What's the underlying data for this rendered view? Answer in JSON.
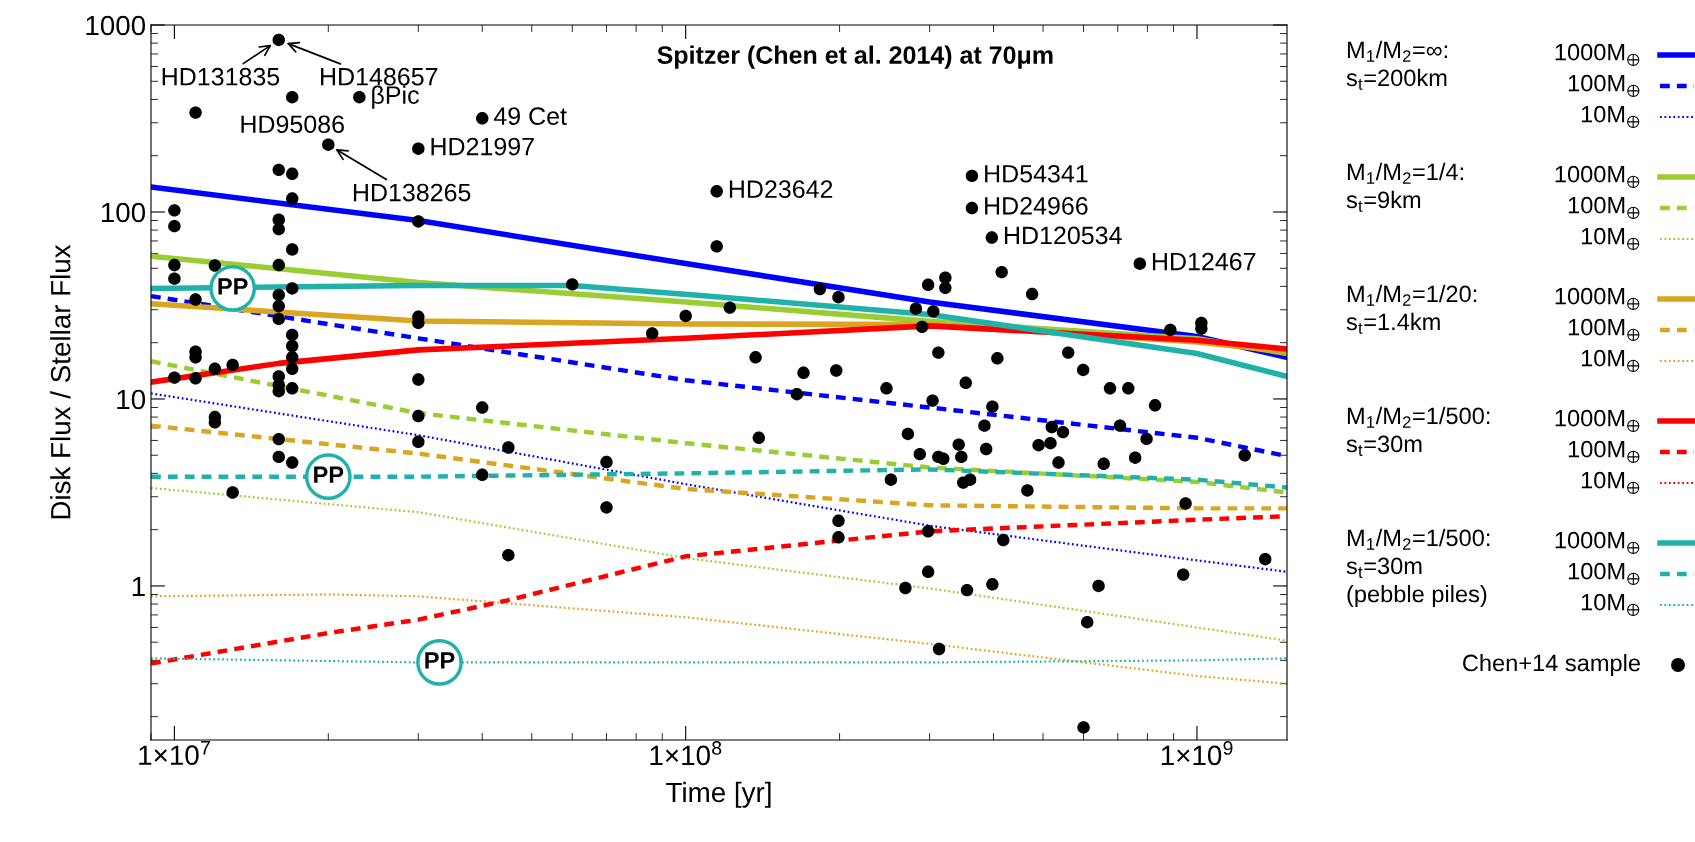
{
  "chart_data": {
    "type": "line",
    "title": "Spitzer (Chen et al. 2014) at 70μm",
    "xlabel": "Time [yr]",
    "ylabel": "Disk Flux / Stellar Flux",
    "log": "xy",
    "grid": false,
    "legend": "right",
    "xlim": [
      9000000.0,
      1500000000.0
    ],
    "ylim": [
      0.15,
      1000
    ],
    "xticks": [
      {
        "value": 10000000.0,
        "label": "1×10$^{7}$"
      },
      {
        "value": 100000000.0,
        "label": "1×10$^{8}$"
      },
      {
        "value": 1000000000.0,
        "label": "1×10$^{9}$"
      }
    ],
    "yticks": [
      1,
      10,
      100,
      1000
    ],
    "series": [
      {
        "name": "1000M$_{⊕}$",
        "color": "#0000ff",
        "line_style": "solid",
        "x": [
          9000000.0,
          30000000.0,
          100000000.0,
          300000000.0,
          1000000000.0,
          1500000000.0
        ],
        "values": [
          136,
          90,
          53,
          33,
          21.6,
          16.7
        ]
      },
      {
        "name": "100M$_{⊕}$",
        "color": "#0000ff",
        "line_style": "dashed",
        "x": [
          9000000.0,
          30000000.0,
          100000000.0,
          300000000.0,
          1000000000.0,
          1500000000.0
        ],
        "values": [
          35.5,
          21.1,
          12.6,
          9.0,
          6.2,
          4.95
        ]
      },
      {
        "name": "10M$_{⊕}$",
        "color": "#0000ff",
        "line_style": "dotted",
        "x": [
          9000000.0,
          30000000.0,
          100000000.0,
          300000000.0,
          1000000000.0,
          1500000000.0
        ],
        "values": [
          10.7,
          6.4,
          3.5,
          2.1,
          1.37,
          1.19
        ]
      },
      {
        "name": "1000M$_{⊕}$",
        "color": "#9acd32",
        "line_style": "solid",
        "x": [
          9000000.0,
          30000000.0,
          100000000.0,
          300000000.0,
          1000000000.0,
          1500000000.0
        ],
        "values": [
          58,
          42,
          33,
          26,
          21,
          17.5
        ]
      },
      {
        "name": "100M$_{⊕}$",
        "color": "#9acd32",
        "line_style": "dashed",
        "x": [
          9000000.0,
          30000000.0,
          100000000.0,
          300000000.0,
          1000000000.0,
          1500000000.0
        ],
        "values": [
          15.9,
          8.4,
          5.8,
          4.3,
          3.6,
          3.16
        ]
      },
      {
        "name": "10M$_{⊕}$",
        "color": "#9acd32",
        "line_style": "dotted",
        "x": [
          9000000.0,
          30000000.0,
          100000000.0,
          300000000.0,
          1000000000.0,
          1500000000.0
        ],
        "values": [
          3.34,
          2.48,
          1.41,
          0.97,
          0.6,
          0.51
        ]
      },
      {
        "name": "1000M$_{⊕}$",
        "color": "#daa520",
        "line_style": "solid",
        "x": [
          9000000.0,
          30000000.0,
          100000000.0,
          300000000.0,
          1000000000.0,
          1500000000.0
        ],
        "values": [
          32.3,
          26.1,
          25.2,
          25,
          20.2,
          17.9
        ]
      },
      {
        "name": "100M$_{⊕}$",
        "color": "#daa520",
        "line_style": "dashed",
        "x": [
          9000000.0,
          30000000.0,
          100000000.0,
          300000000.0,
          1000000000.0,
          1500000000.0
        ],
        "values": [
          7.2,
          5.1,
          3.3,
          2.7,
          2.6,
          2.6
        ]
      },
      {
        "name": "10M$_{⊕}$",
        "color": "#daa520",
        "line_style": "dotted",
        "x": [
          9000000.0,
          20000000.0,
          30000000.0,
          100000000.0,
          300000000.0,
          1000000000.0,
          1500000000.0
        ],
        "values": [
          0.88,
          0.9,
          0.88,
          0.68,
          0.49,
          0.33,
          0.3
        ]
      },
      {
        "name": "1000M$_{⊕}$",
        "color": "#ff0000",
        "line_style": "solid",
        "x": [
          9000000.0,
          16000000.0,
          30000000.0,
          100000000.0,
          300000000.0,
          1000000000.0,
          1500000000.0
        ],
        "values": [
          12.3,
          15.5,
          18.3,
          21.1,
          24.6,
          20.6,
          18.5
        ]
      },
      {
        "name": "100M$_{⊕}$",
        "color": "#ff0000",
        "line_style": "dashed",
        "x": [
          9000000.0,
          20000000.0,
          30000000.0,
          45000000.0,
          100000000.0,
          300000000.0,
          1000000000.0,
          1500000000.0
        ],
        "values": [
          0.385,
          0.56,
          0.66,
          0.84,
          1.44,
          1.96,
          2.26,
          2.36
        ]
      },
      {
        "name": "10M$_{⊕}$",
        "color": "#ff0000",
        "line_style": "dotted"
      },
      {
        "name": "1000M$_{⊕}$",
        "color": "#20b2aa",
        "line_style": "solid",
        "x": [
          9000000.0,
          30000000.0,
          60000000.0,
          107000000.0,
          300000000.0,
          1000000000.0,
          1500000000.0
        ],
        "values": [
          39,
          40.4,
          40.4,
          35.8,
          28.3,
          17.5,
          13.2
        ]
      },
      {
        "name": "100M$_{⊕}$",
        "color": "#20b2aa",
        "line_style": "dashed",
        "x": [
          9000000.0,
          30000000.0,
          100000000.0,
          300000000.0,
          1000000000.0,
          1500000000.0
        ],
        "values": [
          3.84,
          3.84,
          4.0,
          4.2,
          3.7,
          3.36
        ]
      },
      {
        "name": "10M$_{⊕}$",
        "color": "#20b2aa",
        "line_style": "dotted",
        "x": [
          9000000.0,
          30000000.0,
          100000000.0,
          300000000.0,
          1000000000.0,
          1500000000.0
        ],
        "values": [
          0.41,
          0.39,
          0.39,
          0.39,
          0.4,
          0.41
        ]
      },
      {
        "name": "Chen+14 sample",
        "type": "scatter",
        "color": "#000000",
        "marker": "circle",
        "x": [
          10000000.0,
          10000000.0,
          10000000.0,
          10000000.0,
          10000000.0,
          11000000.0,
          11000000.0,
          11000000.0,
          11000000.0,
          11000000.0,
          12000000.0,
          12000000.0,
          12000000.0,
          12000000.0,
          13000000.0,
          13000000.0,
          16000000.0,
          16000000.0,
          16000000.0,
          16000000.0,
          16000000.0,
          16000000.0,
          16000000.0,
          16000000.0,
          16000000.0,
          16000000.0,
          16000000.0,
          16000000.0,
          16000000.0,
          17000000.0,
          17000000.0,
          17000000.0,
          17000000.0,
          17000000.0,
          17000000.0,
          17000000.0,
          17000000.0,
          17000000.0,
          17000000.0,
          17000000.0,
          20000000.0,
          23000000.0,
          30000000.0,
          30000000.0,
          30000000.0,
          30000000.0,
          30000000.0,
          30000000.0,
          30000000.0,
          40000000.0,
          40000000.0,
          40000000.0,
          45000000.0,
          45000000.0,
          60000000.0,
          70000000.0,
          70000000.0,
          86000000.0,
          100000000.0,
          115000000.0,
          115000000.0,
          122000000.0,
          137000000.0,
          139000000.0,
          170000000.0,
          165000000.0,
          183000000.0,
          199000000.0,
          197000000.0,
          199000000.0,
          199000000.0,
          247000000.0,
          252000000.0,
          272000000.0,
          269000000.0,
          298000000.0,
          282000000.0,
          305000000.0,
          290000000.0,
          312000000.0,
          304000000.0,
          287000000.0,
          298000000.0,
          298000000.0,
          313000000.0,
          312000000.0,
          319000000.0,
          322000000.0,
          322000000.0,
          342000000.0,
          346000000.0,
          349000000.0,
          360000000.0,
          355000000.0,
          353000000.0,
          363000000.0,
          363000000.0,
          384000000.0,
          387000000.0,
          398000000.0,
          397000000.0,
          415000000.0,
          407000000.0,
          398000000.0,
          418000000.0,
          476000000.0,
          466000000.0,
          490000000.0,
          517000000.0,
          520000000.0,
          547000000.0,
          536000000.0,
          560000000.0,
          599000000.0,
          610000000.0,
          600000000.0,
          642000000.0,
          657000000.0,
          676000000.0,
          707000000.0,
          734000000.0,
          757000000.0,
          773000000.0,
          828000000.0,
          797000000.0,
          887000000.0,
          1020000000.0,
          1020000000.0,
          950000000.0,
          940000000.0,
          1240000000.0,
          1360000000.0
        ],
        "values": [
          102,
          84,
          52,
          44,
          13.0,
          340,
          34,
          17.9,
          16.7,
          12.9,
          51.7,
          14.5,
          8.0,
          7.5,
          15.2,
          3.16,
          832,
          168,
          91,
          81,
          52,
          36,
          31.4,
          26.8,
          13.2,
          11.9,
          11,
          6.1,
          4.9,
          411,
          160,
          118,
          63,
          39,
          22,
          19.2,
          16.7,
          14.5,
          11.4,
          4.57,
          229,
          411,
          218,
          89,
          27.5,
          25.5,
          12.7,
          8.1,
          5.9,
          317,
          9.0,
          3.93,
          5.5,
          1.46,
          41,
          4.6,
          2.63,
          22.4,
          27.8,
          129,
          65.5,
          30.8,
          16.7,
          6.2,
          13.8,
          10.6,
          38.7,
          35,
          14.2,
          2.23,
          1.82,
          11.4,
          3.7,
          6.5,
          0.975,
          40.8,
          30.4,
          29.4,
          24.3,
          17.7,
          9.8,
          5.07,
          1.96,
          1.19,
          0.46,
          4.9,
          4.79,
          44.5,
          39.3,
          5.7,
          4.9,
          3.57,
          3.7,
          0.95,
          12.2,
          156,
          105,
          7.2,
          5.4,
          9.1,
          73,
          47.7,
          16.5,
          1.02,
          1.76,
          36.4,
          3.24,
          5.66,
          5.8,
          7.08,
          6.65,
          4.57,
          17.7,
          14.3,
          0.64,
          0.175,
          1.0,
          4.5,
          11.4,
          7.2,
          11.4,
          4.85,
          52.9,
          9.25,
          6.12,
          23.4,
          25.5,
          23.8,
          2.76,
          1.15,
          5.0,
          1.39
        ]
      }
    ],
    "annotations": [
      {
        "text": "HD131835",
        "x": 16000000.0,
        "y": 832
      },
      {
        "text": "HD148657",
        "x": 16000000.0,
        "y": 832
      },
      {
        "text": "HD95086",
        "x": 17000000.0,
        "y": 411
      },
      {
        "text": "βPic",
        "x": 23000000.0,
        "y": 411
      },
      {
        "text": "HD138265",
        "x": 20000000.0,
        "y": 229
      },
      {
        "text": "49 Cet",
        "x": 40000000.0,
        "y": 317
      },
      {
        "text": "HD21997",
        "x": 30000000.0,
        "y": 218
      },
      {
        "text": "HD23642",
        "x": 115000000.0,
        "y": 129
      },
      {
        "text": "HD54341",
        "x": 363000000.0,
        "y": 156
      },
      {
        "text": "HD24966",
        "x": 363000000.0,
        "y": 105
      },
      {
        "text": "HD120534",
        "x": 397000000.0,
        "y": 73
      },
      {
        "text": "HD12467",
        "x": 773000000.0,
        "y": 52.9
      },
      {
        "text": "PP",
        "x": 13000000.0,
        "y": 39
      },
      {
        "text": "PP",
        "x": 20000000.0,
        "y": 3.84
      },
      {
        "text": "PP",
        "x": 33000000.0,
        "y": 0.39
      },
      "M$_{1}$/M$_{2}$=∞:\ns$_{t}$=200km",
      "M$_{1}$/M$_{2}$=1/4:\ns$_{t}$=9km",
      "M$_{1}$/M$_{2}$=1/20:\ns$_{t}$=1.4km",
      "M$_{1}$/M$_{2}$=1/500:\ns$_{t}$=30m",
      "M$_{1}$/M$_{2}$=1/500:\ns$_{t}$=30m\n(pebble piles)"
    ]
  }
}
